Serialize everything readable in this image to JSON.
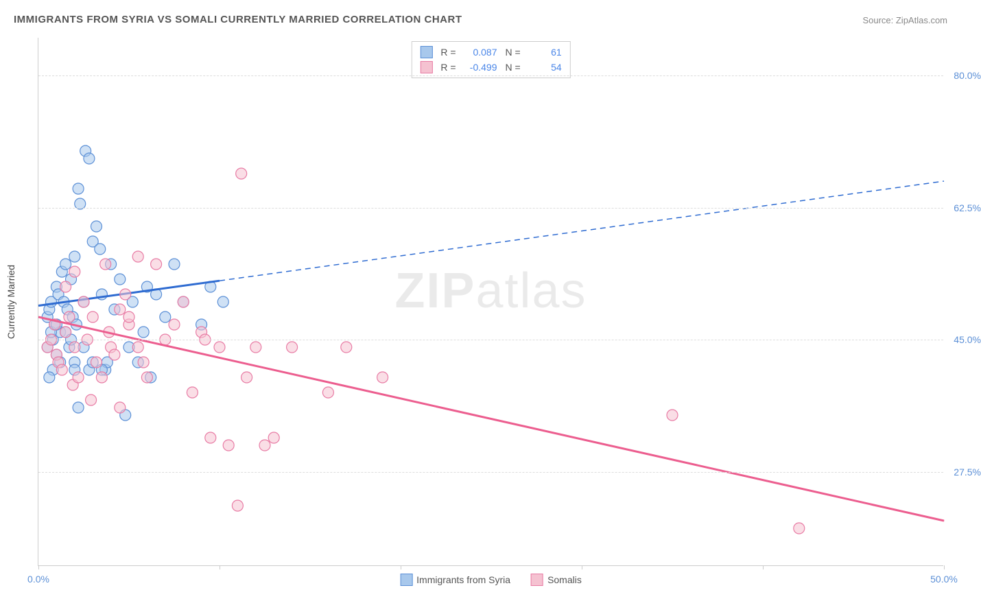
{
  "title": "IMMIGRANTS FROM SYRIA VS SOMALI CURRENTLY MARRIED CORRELATION CHART",
  "source": "Source: ZipAtlas.com",
  "watermark": {
    "part1": "ZIP",
    "part2": "atlas"
  },
  "y_axis_label": "Currently Married",
  "xlim": [
    0,
    50
  ],
  "ylim": [
    15,
    85
  ],
  "x_ticks": [
    0,
    10,
    20,
    30,
    40,
    50
  ],
  "x_tick_labels": {
    "0": "0.0%",
    "50": "50.0%"
  },
  "y_gridlines": [
    27.5,
    45.0,
    62.5,
    80.0
  ],
  "y_tick_labels": [
    "27.5%",
    "45.0%",
    "62.5%",
    "80.0%"
  ],
  "series": [
    {
      "name": "Immigrants from Syria",
      "color_fill": "#a8c8ec",
      "color_stroke": "#5b8fd6",
      "line_color": "#2e6bd1",
      "R": "0.087",
      "N": "61",
      "regression": {
        "x1": 0,
        "y1": 49.5,
        "x2_solid": 10,
        "y2_solid": 52.8,
        "x2_dash": 50,
        "y2_dash": 66
      },
      "points": [
        [
          0.5,
          48
        ],
        [
          0.6,
          49
        ],
        [
          0.7,
          50
        ],
        [
          0.8,
          45
        ],
        [
          0.9,
          47
        ],
        [
          1.0,
          52
        ],
        [
          1.1,
          51
        ],
        [
          1.2,
          46
        ],
        [
          1.3,
          54
        ],
        [
          1.4,
          50
        ],
        [
          1.5,
          55
        ],
        [
          1.6,
          49
        ],
        [
          1.7,
          44
        ],
        [
          1.8,
          53
        ],
        [
          1.9,
          48
        ],
        [
          2.0,
          56
        ],
        [
          2.1,
          47
        ],
        [
          2.2,
          65
        ],
        [
          2.3,
          63
        ],
        [
          2.5,
          50
        ],
        [
          2.6,
          70
        ],
        [
          2.8,
          69
        ],
        [
          3.0,
          58
        ],
        [
          3.2,
          60
        ],
        [
          3.4,
          57
        ],
        [
          3.5,
          51
        ],
        [
          3.7,
          41
        ],
        [
          3.8,
          42
        ],
        [
          4.0,
          55
        ],
        [
          4.2,
          49
        ],
        [
          4.5,
          53
        ],
        [
          4.8,
          35
        ],
        [
          5.0,
          44
        ],
        [
          5.2,
          50
        ],
        [
          5.5,
          42
        ],
        [
          5.8,
          46
        ],
        [
          6.0,
          52
        ],
        [
          6.2,
          40
        ],
        [
          6.5,
          51
        ],
        [
          7.0,
          48
        ],
        [
          7.5,
          55
        ],
        [
          8.0,
          50
        ],
        [
          9.0,
          47
        ],
        [
          9.5,
          52
        ],
        [
          10.2,
          50
        ],
        [
          1.0,
          43
        ],
        [
          1.2,
          42
        ],
        [
          0.8,
          41
        ],
        [
          0.6,
          40
        ],
        [
          2.0,
          42
        ],
        [
          2.5,
          44
        ],
        [
          0.5,
          44
        ],
        [
          0.7,
          46
        ],
        [
          1.0,
          47
        ],
        [
          1.5,
          46
        ],
        [
          1.8,
          45
        ],
        [
          2.2,
          36
        ],
        [
          2.8,
          41
        ],
        [
          3.0,
          42
        ],
        [
          3.5,
          41
        ],
        [
          2.0,
          41
        ]
      ]
    },
    {
      "name": "Somalis",
      "color_fill": "#f5c2d1",
      "color_stroke": "#e87ba4",
      "line_color": "#ec5e8f",
      "R": "-0.499",
      "N": "54",
      "regression": {
        "x1": 0,
        "y1": 48,
        "x2_solid": 50,
        "y2_solid": 21,
        "x2_dash": 50,
        "y2_dash": 21
      },
      "points": [
        [
          0.5,
          44
        ],
        [
          0.7,
          45
        ],
        [
          0.9,
          47
        ],
        [
          1.0,
          43
        ],
        [
          1.1,
          42
        ],
        [
          1.3,
          41
        ],
        [
          1.5,
          46
        ],
        [
          1.7,
          48
        ],
        [
          1.9,
          39
        ],
        [
          2.0,
          44
        ],
        [
          2.2,
          40
        ],
        [
          2.5,
          50
        ],
        [
          2.7,
          45
        ],
        [
          2.9,
          37
        ],
        [
          3.0,
          48
        ],
        [
          3.2,
          42
        ],
        [
          3.5,
          40
        ],
        [
          3.7,
          55
        ],
        [
          3.9,
          46
        ],
        [
          4.0,
          44
        ],
        [
          4.2,
          43
        ],
        [
          4.5,
          49
        ],
        [
          4.8,
          51
        ],
        [
          5.0,
          47
        ],
        [
          5.5,
          56
        ],
        [
          5.8,
          42
        ],
        [
          6.0,
          40
        ],
        [
          6.5,
          55
        ],
        [
          7.0,
          45
        ],
        [
          7.5,
          47
        ],
        [
          8.0,
          50
        ],
        [
          8.5,
          38
        ],
        [
          9.0,
          46
        ],
        [
          9.2,
          45
        ],
        [
          9.5,
          32
        ],
        [
          10.0,
          44
        ],
        [
          10.5,
          31
        ],
        [
          11.0,
          23
        ],
        [
          11.2,
          67
        ],
        [
          11.5,
          40
        ],
        [
          12.0,
          44
        ],
        [
          12.5,
          31
        ],
        [
          13.0,
          32
        ],
        [
          14.0,
          44
        ],
        [
          16.0,
          38
        ],
        [
          17.0,
          44
        ],
        [
          19.0,
          40
        ],
        [
          35.0,
          35
        ],
        [
          42.0,
          20
        ],
        [
          4.5,
          36
        ],
        [
          5.0,
          48
        ],
        [
          5.5,
          44
        ],
        [
          1.5,
          52
        ],
        [
          2.0,
          54
        ]
      ]
    }
  ],
  "bottom_legend": [
    "Immigrants from Syria",
    "Somalis"
  ],
  "marker_radius": 8,
  "marker_opacity": 0.55,
  "line_width_solid": 3,
  "line_width_dash": 1.5
}
